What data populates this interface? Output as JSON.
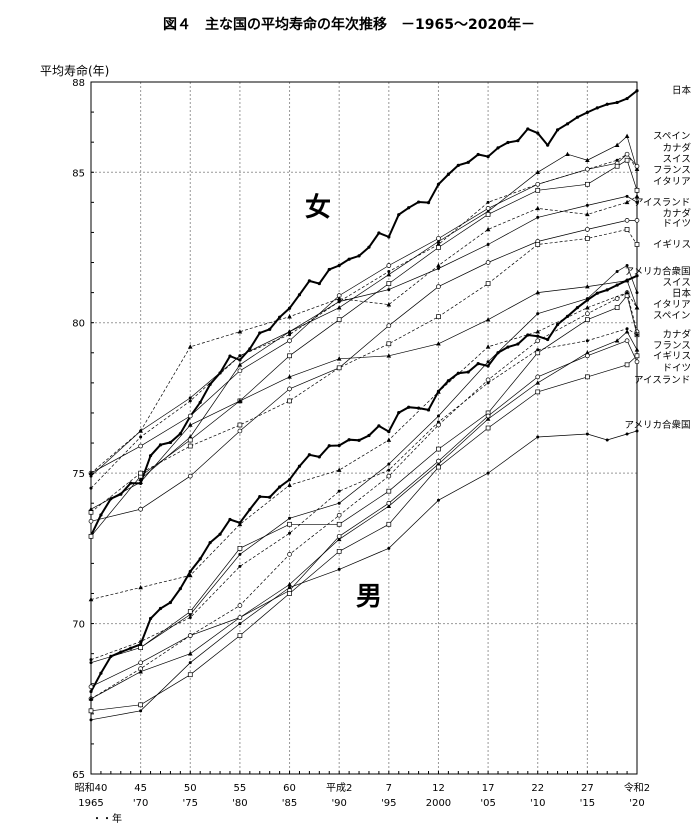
{
  "chart_data": {
    "type": "line",
    "title": "図４　主な国の平均寿命の年次推移　－1965～2020年－",
    "ylabel": "平均寿命(年)",
    "xlabel": "年",
    "ylim": [
      65,
      88
    ],
    "xlim": [
      1965,
      2020
    ],
    "grid": true,
    "y_ticks": [
      65,
      70,
      75,
      80,
      85,
      88
    ],
    "x_ticks": [
      {
        "x": 1965,
        "era": "昭和40",
        "year": "1965"
      },
      {
        "x": 1970,
        "era": "45",
        "year": "'70"
      },
      {
        "x": 1975,
        "era": "50",
        "year": "'75"
      },
      {
        "x": 1980,
        "era": "55",
        "year": "'80"
      },
      {
        "x": 1985,
        "era": "60",
        "year": "'85"
      },
      {
        "x": 1990,
        "era": "平成2",
        "year": "'90"
      },
      {
        "x": 1995,
        "era": "7",
        "year": "'95"
      },
      {
        "x": 2000,
        "era": "12",
        "year": "2000"
      },
      {
        "x": 2005,
        "era": "17",
        "year": "'05"
      },
      {
        "x": 2010,
        "era": "22",
        "year": "'10"
      },
      {
        "x": 2015,
        "era": "27",
        "year": "'15"
      },
      {
        "x": 2020,
        "era": "令和2",
        "year": "'20"
      }
    ],
    "group_labels": {
      "female": "女",
      "male": "男"
    },
    "series": [
      {
        "name": "日本",
        "group": "female",
        "style": "bold",
        "x": [
          1965,
          1966,
          1967,
          1968,
          1969,
          1970,
          1971,
          1972,
          1973,
          1974,
          1975,
          1976,
          1977,
          1978,
          1979,
          1980,
          1981,
          1982,
          1983,
          1984,
          1985,
          1986,
          1987,
          1988,
          1989,
          1990,
          1991,
          1992,
          1993,
          1994,
          1995,
          1996,
          1997,
          1998,
          1999,
          2000,
          2001,
          2002,
          2003,
          2004,
          2005,
          2006,
          2007,
          2008,
          2009,
          2010,
          2011,
          2012,
          2013,
          2014,
          2015,
          2016,
          2017,
          2018,
          2019,
          2020
        ],
        "y": [
          72.92,
          73.61,
          74.15,
          74.3,
          74.67,
          74.66,
          75.58,
          75.94,
          76.02,
          76.31,
          76.89,
          77.35,
          77.95,
          78.33,
          78.89,
          78.76,
          79.13,
          79.66,
          79.78,
          80.18,
          80.48,
          80.93,
          81.39,
          81.3,
          81.77,
          81.9,
          82.11,
          82.22,
          82.51,
          82.98,
          82.85,
          83.59,
          83.82,
          84.01,
          83.99,
          84.6,
          84.93,
          85.23,
          85.33,
          85.59,
          85.52,
          85.81,
          85.99,
          86.05,
          86.44,
          86.3,
          85.9,
          86.41,
          86.61,
          86.83,
          86.99,
          87.14,
          87.26,
          87.32,
          87.45,
          87.71
        ]
      },
      {
        "name": "日本",
        "group": "male",
        "style": "bold",
        "x": [
          1965,
          1966,
          1967,
          1968,
          1969,
          1970,
          1971,
          1972,
          1973,
          1974,
          1975,
          1976,
          1977,
          1978,
          1979,
          1980,
          1981,
          1982,
          1983,
          1984,
          1985,
          1986,
          1987,
          1988,
          1989,
          1990,
          1991,
          1992,
          1993,
          1994,
          1995,
          1996,
          1997,
          1998,
          1999,
          2000,
          2001,
          2002,
          2003,
          2004,
          2005,
          2006,
          2007,
          2008,
          2009,
          2010,
          2011,
          2012,
          2013,
          2014,
          2015,
          2016,
          2017,
          2018,
          2019,
          2020
        ],
        "y": [
          67.74,
          68.35,
          68.91,
          69.05,
          69.18,
          69.31,
          70.17,
          70.5,
          70.7,
          71.16,
          71.73,
          72.15,
          72.69,
          72.97,
          73.46,
          73.35,
          73.79,
          74.22,
          74.2,
          74.54,
          74.78,
          75.23,
          75.61,
          75.54,
          75.91,
          75.92,
          76.11,
          76.09,
          76.25,
          76.57,
          76.38,
          77.01,
          77.19,
          77.16,
          77.1,
          77.72,
          78.07,
          78.32,
          78.36,
          78.64,
          78.56,
          79.0,
          79.19,
          79.29,
          79.59,
          79.55,
          79.44,
          79.94,
          80.21,
          80.5,
          80.75,
          80.98,
          81.09,
          81.25,
          81.41,
          81.56
        ]
      },
      {
        "name": "スペイン",
        "group": "female",
        "x": [
          1970,
          1975,
          1980,
          1985,
          1990,
          1995,
          2000,
          2005,
          2010,
          2013,
          2015,
          2018,
          2019,
          2020
        ],
        "y": [
          74.8,
          76.2,
          78.6,
          79.7,
          80.5,
          81.6,
          82.7,
          83.7,
          85.0,
          85.6,
          85.4,
          85.9,
          86.2,
          85.1
        ]
      },
      {
        "name": "スイス",
        "group": "female",
        "x": [
          1965,
          1970,
          1975,
          1980,
          1985,
          1990,
          1995,
          2000,
          2005,
          2010,
          2015,
          2018,
          2019,
          2020
        ],
        "y": [
          74.5,
          76.2,
          77.4,
          78.9,
          79.6,
          80.7,
          81.7,
          82.6,
          84.0,
          84.6,
          85.1,
          85.4,
          85.6,
          85.1
        ]
      },
      {
        "name": "フランス",
        "group": "female",
        "x": [
          1965,
          1970,
          1975,
          1980,
          1985,
          1990,
          1995,
          2000,
          2005,
          2010,
          2015,
          2018,
          2019,
          2020
        ],
        "y": [
          75.0,
          75.9,
          76.9,
          78.4,
          79.4,
          80.9,
          81.9,
          82.8,
          83.8,
          84.6,
          85.1,
          85.3,
          85.6,
          85.2
        ]
      },
      {
        "name": "イタリア",
        "group": "female",
        "x": [
          1965,
          1970,
          1975,
          1980,
          1985,
          1990,
          1995,
          2000,
          2005,
          2010,
          2015,
          2018,
          2019,
          2020
        ],
        "y": [
          72.9,
          74.9,
          76.1,
          77.4,
          78.9,
          80.1,
          81.3,
          82.5,
          83.6,
          84.4,
          84.6,
          85.2,
          85.4,
          84.4
        ]
      },
      {
        "name": "アイスランド",
        "group": "female",
        "x": [
          1965,
          1970,
          1975,
          1980,
          1985,
          1990,
          1995,
          2000,
          2005,
          2010,
          2015,
          2019,
          2020
        ],
        "y": [
          75.0,
          76.4,
          79.2,
          79.7,
          80.2,
          80.8,
          80.6,
          81.9,
          83.1,
          83.8,
          83.6,
          84.0,
          84.2
        ]
      },
      {
        "name": "カナダ",
        "group": "female",
        "x": [
          1965,
          1970,
          1975,
          1980,
          1985,
          1990,
          1995,
          2000,
          2005,
          2010,
          2015,
          2019,
          2020
        ],
        "y": [
          74.9,
          76.4,
          77.5,
          78.9,
          79.7,
          80.7,
          81.1,
          81.8,
          82.6,
          83.5,
          83.9,
          84.2,
          84.0
        ]
      },
      {
        "name": "ドイツ",
        "group": "female",
        "x": [
          1965,
          1970,
          1975,
          1980,
          1985,
          1990,
          1995,
          2000,
          2005,
          2010,
          2015,
          2019,
          2020
        ],
        "y": [
          73.4,
          73.8,
          74.9,
          76.4,
          77.8,
          78.5,
          79.9,
          81.2,
          82.0,
          82.7,
          83.1,
          83.4,
          83.4
        ]
      },
      {
        "name": "イギリス",
        "group": "female",
        "x": [
          1965,
          1970,
          1975,
          1980,
          1985,
          1990,
          1995,
          2000,
          2005,
          2010,
          2015,
          2019,
          2020
        ],
        "y": [
          73.7,
          75.0,
          75.9,
          76.6,
          77.4,
          78.5,
          79.3,
          80.2,
          81.3,
          82.6,
          82.8,
          83.1,
          82.6
        ]
      },
      {
        "name": "アメリカ合衆国",
        "group": "female",
        "x": [
          1965,
          1970,
          1975,
          1980,
          1985,
          1990,
          1995,
          2000,
          2005,
          2010,
          2015,
          2019,
          2020
        ],
        "y": [
          73.8,
          74.7,
          76.6,
          77.4,
          78.2,
          78.8,
          78.9,
          79.3,
          80.1,
          81.0,
          81.2,
          81.4,
          80.5
        ]
      },
      {
        "name": "スイス",
        "group": "male",
        "x": [
          1965,
          1970,
          1975,
          1980,
          1985,
          1990,
          1995,
          2000,
          2005,
          2010,
          2015,
          2018,
          2019,
          2020
        ],
        "y": [
          68.7,
          69.2,
          70.3,
          72.3,
          73.5,
          74.0,
          75.3,
          76.9,
          78.7,
          80.3,
          80.8,
          81.7,
          81.9,
          81.0
        ]
      },
      {
        "name": "イタリア",
        "group": "male",
        "x": [
          1965,
          1970,
          1975,
          1980,
          1985,
          1990,
          1995,
          2000,
          2005,
          2010,
          2015,
          2018,
          2019,
          2020
        ],
        "y": [
          67.5,
          68.5,
          69.6,
          70.6,
          72.3,
          73.6,
          74.9,
          76.6,
          78.1,
          79.4,
          80.3,
          80.8,
          81.0,
          79.7
        ]
      },
      {
        "name": "スペイン",
        "group": "male",
        "x": [
          1970,
          1975,
          1980,
          1985,
          1990,
          1995,
          2000,
          2005,
          2010,
          2015,
          2018,
          2019,
          2020
        ],
        "y": [
          69.2,
          70.4,
          72.5,
          73.3,
          73.3,
          74.4,
          75.8,
          77.0,
          79.0,
          80.1,
          80.5,
          80.9,
          79.6
        ]
      },
      {
        "name": "フランス",
        "group": "male",
        "x": [
          1965,
          1970,
          1975,
          1980,
          1985,
          1990,
          1995,
          2000,
          2005,
          2010,
          2015,
          2018,
          2019,
          2020
        ],
        "y": [
          67.5,
          68.4,
          69.0,
          70.2,
          71.3,
          72.8,
          73.9,
          75.3,
          76.8,
          78.0,
          79.0,
          79.4,
          79.7,
          79.1
        ]
      },
      {
        "name": "カナダ",
        "group": "male",
        "x": [
          1965,
          1970,
          1975,
          1980,
          1985,
          1990,
          1995,
          2000,
          2005,
          2010,
          2015,
          2019,
          2020
        ],
        "y": [
          68.8,
          69.4,
          70.2,
          71.9,
          73.0,
          74.4,
          75.1,
          76.7,
          78.0,
          79.1,
          79.4,
          79.8,
          79.6
        ]
      },
      {
        "name": "イギリス",
        "group": "male",
        "x": [
          1965,
          1970,
          1975,
          1980,
          1985,
          1990,
          1995,
          2000,
          2005,
          2010,
          2015,
          2019,
          2020
        ],
        "y": [
          67.9,
          68.7,
          69.6,
          70.2,
          71.1,
          72.9,
          74.0,
          75.4,
          76.9,
          78.2,
          78.9,
          79.4,
          78.7
        ]
      },
      {
        "name": "ドイツ",
        "group": "male",
        "x": [
          1965,
          1970,
          1975,
          1980,
          1985,
          1990,
          1995,
          2000,
          2005,
          2010,
          2015,
          2019,
          2020
        ],
        "y": [
          67.1,
          67.3,
          68.3,
          69.6,
          71.0,
          72.4,
          73.3,
          75.2,
          76.5,
          77.7,
          78.2,
          78.6,
          78.9
        ]
      },
      {
        "name": "アイスランド",
        "group": "male",
        "x": [
          1965,
          1970,
          1975,
          1980,
          1985,
          1990,
          1995,
          2000,
          2005,
          2010,
          2015,
          2019,
          2020
        ],
        "y": [
          70.8,
          71.2,
          71.6,
          73.3,
          74.6,
          75.1,
          76.1,
          77.7,
          79.2,
          79.7,
          80.5,
          81.0,
          80.5
        ]
      },
      {
        "name": "アメリカ合衆国",
        "group": "male",
        "x": [
          1965,
          1970,
          1975,
          1980,
          1985,
          1990,
          1995,
          2000,
          2005,
          2010,
          2015,
          2017,
          2019,
          2020
        ],
        "y": [
          66.8,
          67.1,
          68.7,
          70.0,
          71.2,
          71.8,
          72.5,
          74.1,
          75.0,
          76.2,
          76.3,
          76.1,
          76.3,
          76.4
        ]
      }
    ],
    "end_labels": [
      {
        "text": "日本",
        "group": "female",
        "value": 87.71
      },
      {
        "text": "スペイン",
        "group": "female",
        "value": 86.2
      },
      {
        "text": "カナダ",
        "group": "female",
        "value": 85.8
      },
      {
        "text": "スイス",
        "group": "female",
        "value": 85.6
      },
      {
        "text": "フランス",
        "group": "female",
        "value": 85.5
      },
      {
        "text": "イタリア",
        "group": "female",
        "value": 84.7
      },
      {
        "text": "アイスランド",
        "group": "female",
        "value": 84.0
      },
      {
        "text": "カナダ",
        "group": "female",
        "value": 83.7
      },
      {
        "text": "ドイツ",
        "group": "female",
        "value": 83.3
      },
      {
        "text": "イギリス",
        "group": "female",
        "value": 82.6
      },
      {
        "text": "アメリカ合衆国",
        "group": "female",
        "value": 81.7
      },
      {
        "text": "スイス",
        "group": "male",
        "value": 82.0
      },
      {
        "text": "日本",
        "group": "male",
        "value": 81.56
      },
      {
        "text": "イタリア",
        "group": "male",
        "value": 81.1
      },
      {
        "text": "スペイン",
        "group": "male",
        "value": 80.4
      },
      {
        "text": "カナダ",
        "group": "male",
        "value": 79.6
      },
      {
        "text": "フランス",
        "group": "male",
        "value": 79.5
      },
      {
        "text": "イギリス",
        "group": "male",
        "value": 78.9
      },
      {
        "text": "ドイツ",
        "group": "male",
        "value": 78.5
      },
      {
        "text": "アイスランド",
        "group": "male",
        "value": 78.1
      },
      {
        "text": "アメリカ合衆国",
        "group": "male",
        "value": 76.6
      }
    ]
  }
}
